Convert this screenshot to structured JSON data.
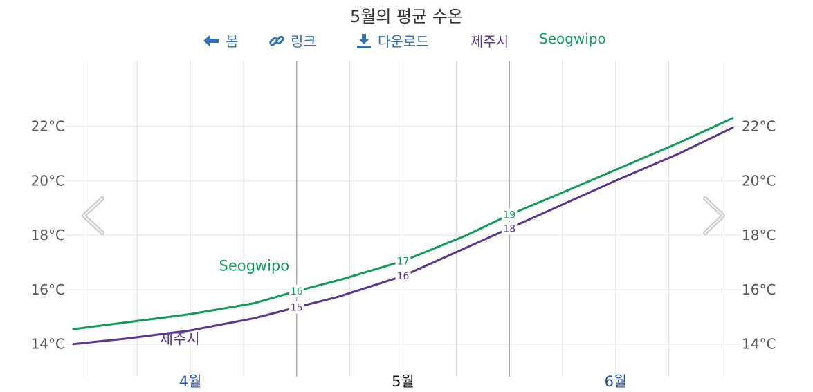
{
  "title": "5월의 평균 수온",
  "toolbar": {
    "back_label": "봄",
    "link_label": "링크",
    "download_label": "다운로드",
    "legend_jeju": "제주시",
    "legend_seogwipo": "Seogwipo"
  },
  "colors": {
    "jeju": "#5a3692",
    "seogwipo": "#119a5a",
    "link": "#3070b8",
    "month_label": "#1f4fa8"
  },
  "icons": {
    "back": "arrow-left-icon",
    "link": "link-icon",
    "download": "download-icon",
    "prev": "chevron-left-icon",
    "next": "chevron-right-icon"
  },
  "chart_data": {
    "type": "line",
    "title": "5월의 평균 수온",
    "x_labels": [
      "4월",
      "5월",
      "6월"
    ],
    "x_label_highlight": "5월",
    "x_range_months": [
      3.45,
      6.55
    ],
    "y_tick_labels": [
      "14°C",
      "16°C",
      "18°C",
      "20°C",
      "22°C"
    ],
    "y_ticks": [
      14,
      16,
      18,
      20,
      22
    ],
    "ylim": [
      12.8,
      24.4
    ],
    "grid": true,
    "series": [
      {
        "name": "제주시",
        "x": [
          3.45,
          3.7,
          4.0,
          4.3,
          4.5,
          4.7,
          5.0,
          5.3,
          5.5,
          5.7,
          6.0,
          6.3,
          6.55
        ],
        "values": [
          14.0,
          14.2,
          14.5,
          14.95,
          15.35,
          15.75,
          16.5,
          17.55,
          18.25,
          18.95,
          20.0,
          21.0,
          21.95
        ],
        "point_labels": [
          {
            "x": 4.5,
            "label": "15"
          },
          {
            "x": 5.0,
            "label": "16"
          },
          {
            "x": 5.5,
            "label": "18"
          }
        ]
      },
      {
        "name": "Seogwipo",
        "x": [
          3.45,
          3.7,
          4.0,
          4.3,
          4.5,
          4.7,
          5.0,
          5.3,
          5.5,
          5.7,
          6.0,
          6.3,
          6.55
        ],
        "values": [
          14.55,
          14.8,
          15.1,
          15.5,
          15.95,
          16.35,
          17.05,
          18.0,
          18.75,
          19.4,
          20.4,
          21.4,
          22.3
        ],
        "point_labels": [
          {
            "x": 4.5,
            "label": "16"
          },
          {
            "x": 5.0,
            "label": "17"
          },
          {
            "x": 5.5,
            "label": "19"
          }
        ]
      }
    ],
    "series_annotations": [
      {
        "series": "Seogwipo",
        "text": "Seogwipo",
        "x": 4.3,
        "y": 16.7
      },
      {
        "series": "제주시",
        "text": "제주시",
        "x": 3.95,
        "y": 14.0
      }
    ]
  }
}
